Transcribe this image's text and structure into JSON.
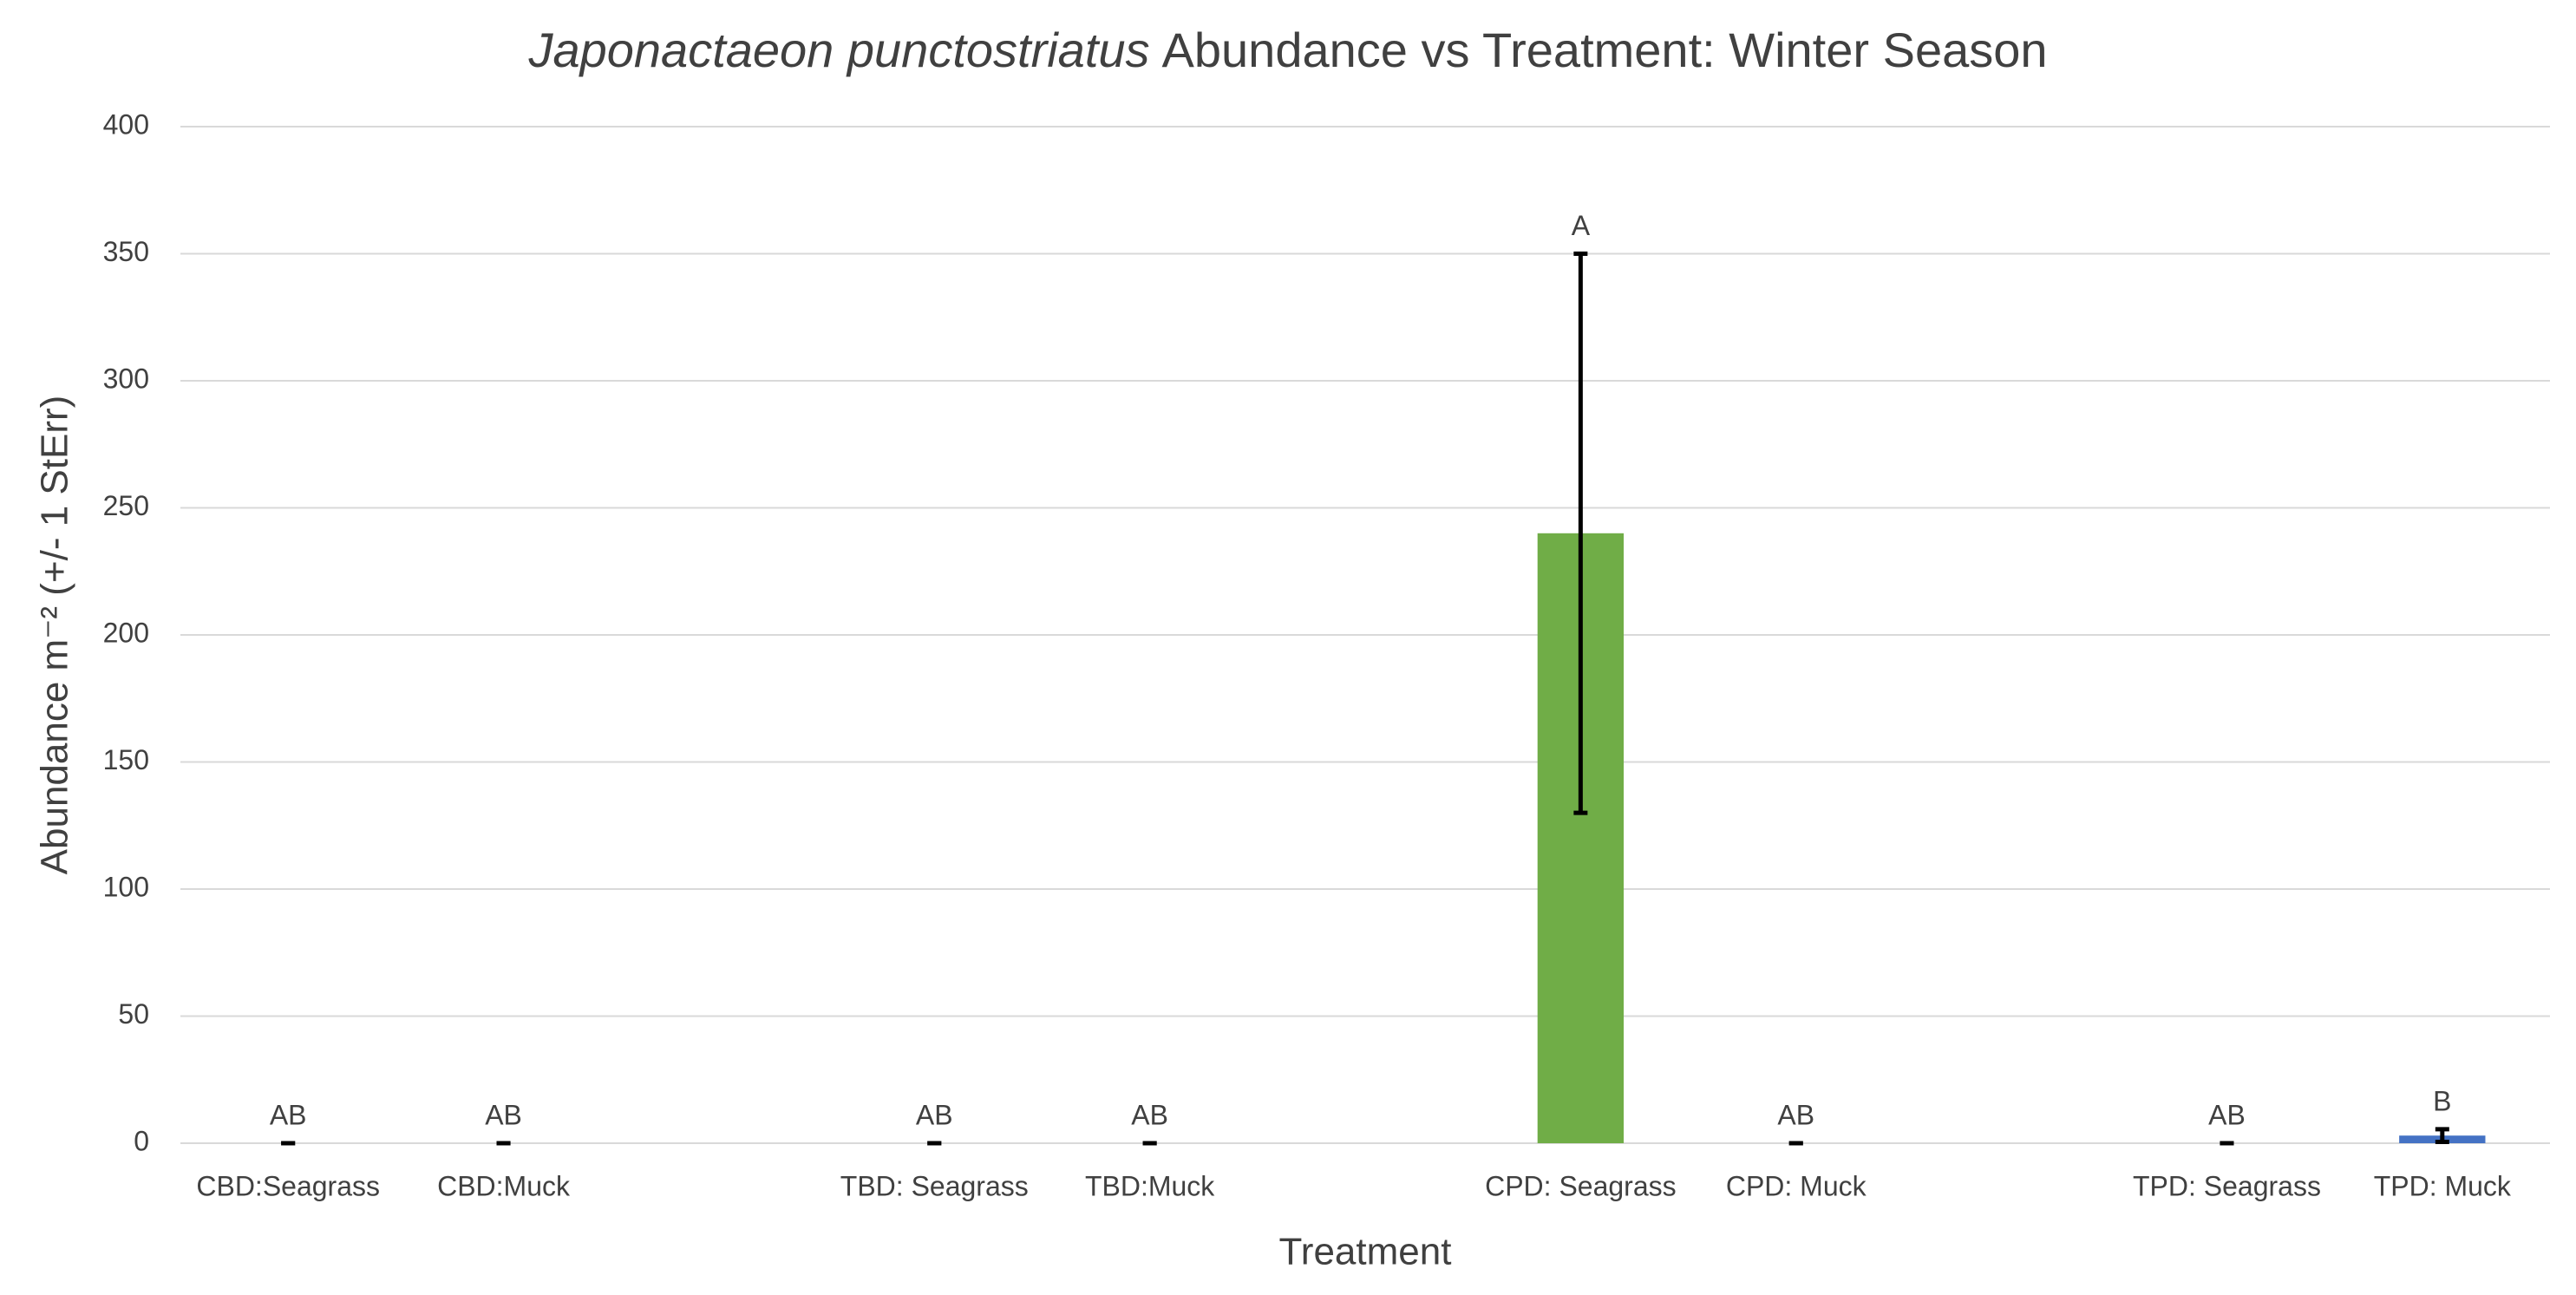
{
  "chart_data": {
    "type": "bar",
    "title": {
      "italic": "Japonactaeon punctostriatus",
      "text": "Abundance vs Treatment: Winter Season"
    },
    "x_label": "Treatment",
    "y_label": "Abundance m⁻² (+/- 1 StErr)",
    "categories": [
      "CBD:Seagrass",
      "CBD:Muck",
      null,
      "TBD: Seagrass",
      "TBD:Muck",
      null,
      "CPD: Seagrass",
      "CPD: Muck",
      null,
      "TPD: Seagrass",
      "TPD: Muck"
    ],
    "values": [
      0,
      0,
      null,
      0,
      0,
      null,
      240,
      0,
      null,
      0,
      3
    ],
    "errors": [
      0,
      0,
      null,
      0,
      0,
      null,
      110,
      0,
      null,
      0,
      2.5
    ],
    "annotations": [
      "AB",
      "AB",
      null,
      "AB",
      "AB",
      null,
      "A",
      "AB",
      null,
      "AB",
      "B"
    ],
    "colors": [
      "#70ad47",
      "#70ad47",
      null,
      "#70ad47",
      "#70ad47",
      null,
      "#70ad47",
      "#4472c4",
      null,
      "#4472c4",
      "#4472c4"
    ],
    "ylim": [
      0,
      400
    ],
    "yticks": [
      0,
      50,
      100,
      150,
      200,
      250,
      300,
      350,
      400
    ],
    "grid": true
  }
}
